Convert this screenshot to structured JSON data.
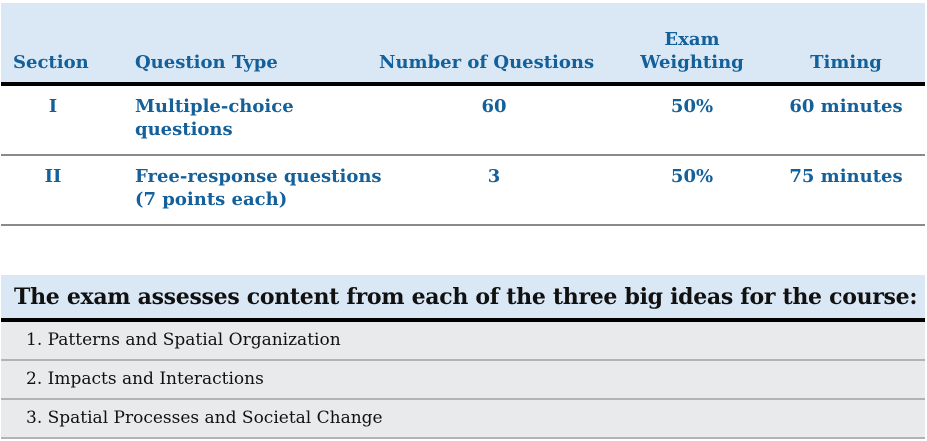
{
  "table": {
    "headers": [
      "Section",
      "Question Type",
      "Number of Questions",
      "Exam Weighting",
      "Timing"
    ],
    "rows": [
      {
        "section": "I",
        "type_line1": "Multiple-choice",
        "type_line2": "questions",
        "count": "60",
        "weighting": "50%",
        "timing": "60 minutes"
      },
      {
        "section": "II",
        "type_line1": "Free-response questions",
        "type_line2": "(7 points each)",
        "count": "3",
        "weighting": "50%",
        "timing": "75 minutes"
      }
    ]
  },
  "big_ideas": {
    "title": "The exam assesses content from each of the three big ideas for the course:",
    "items": [
      "1. Patterns and Spatial Organization",
      "2. Impacts and Interactions",
      "3. Spatial Processes and Societal Change"
    ]
  },
  "colors": {
    "header_bg": "#dae8f6",
    "text_blue": "#13609a",
    "list_bg": "#e9eaec"
  }
}
